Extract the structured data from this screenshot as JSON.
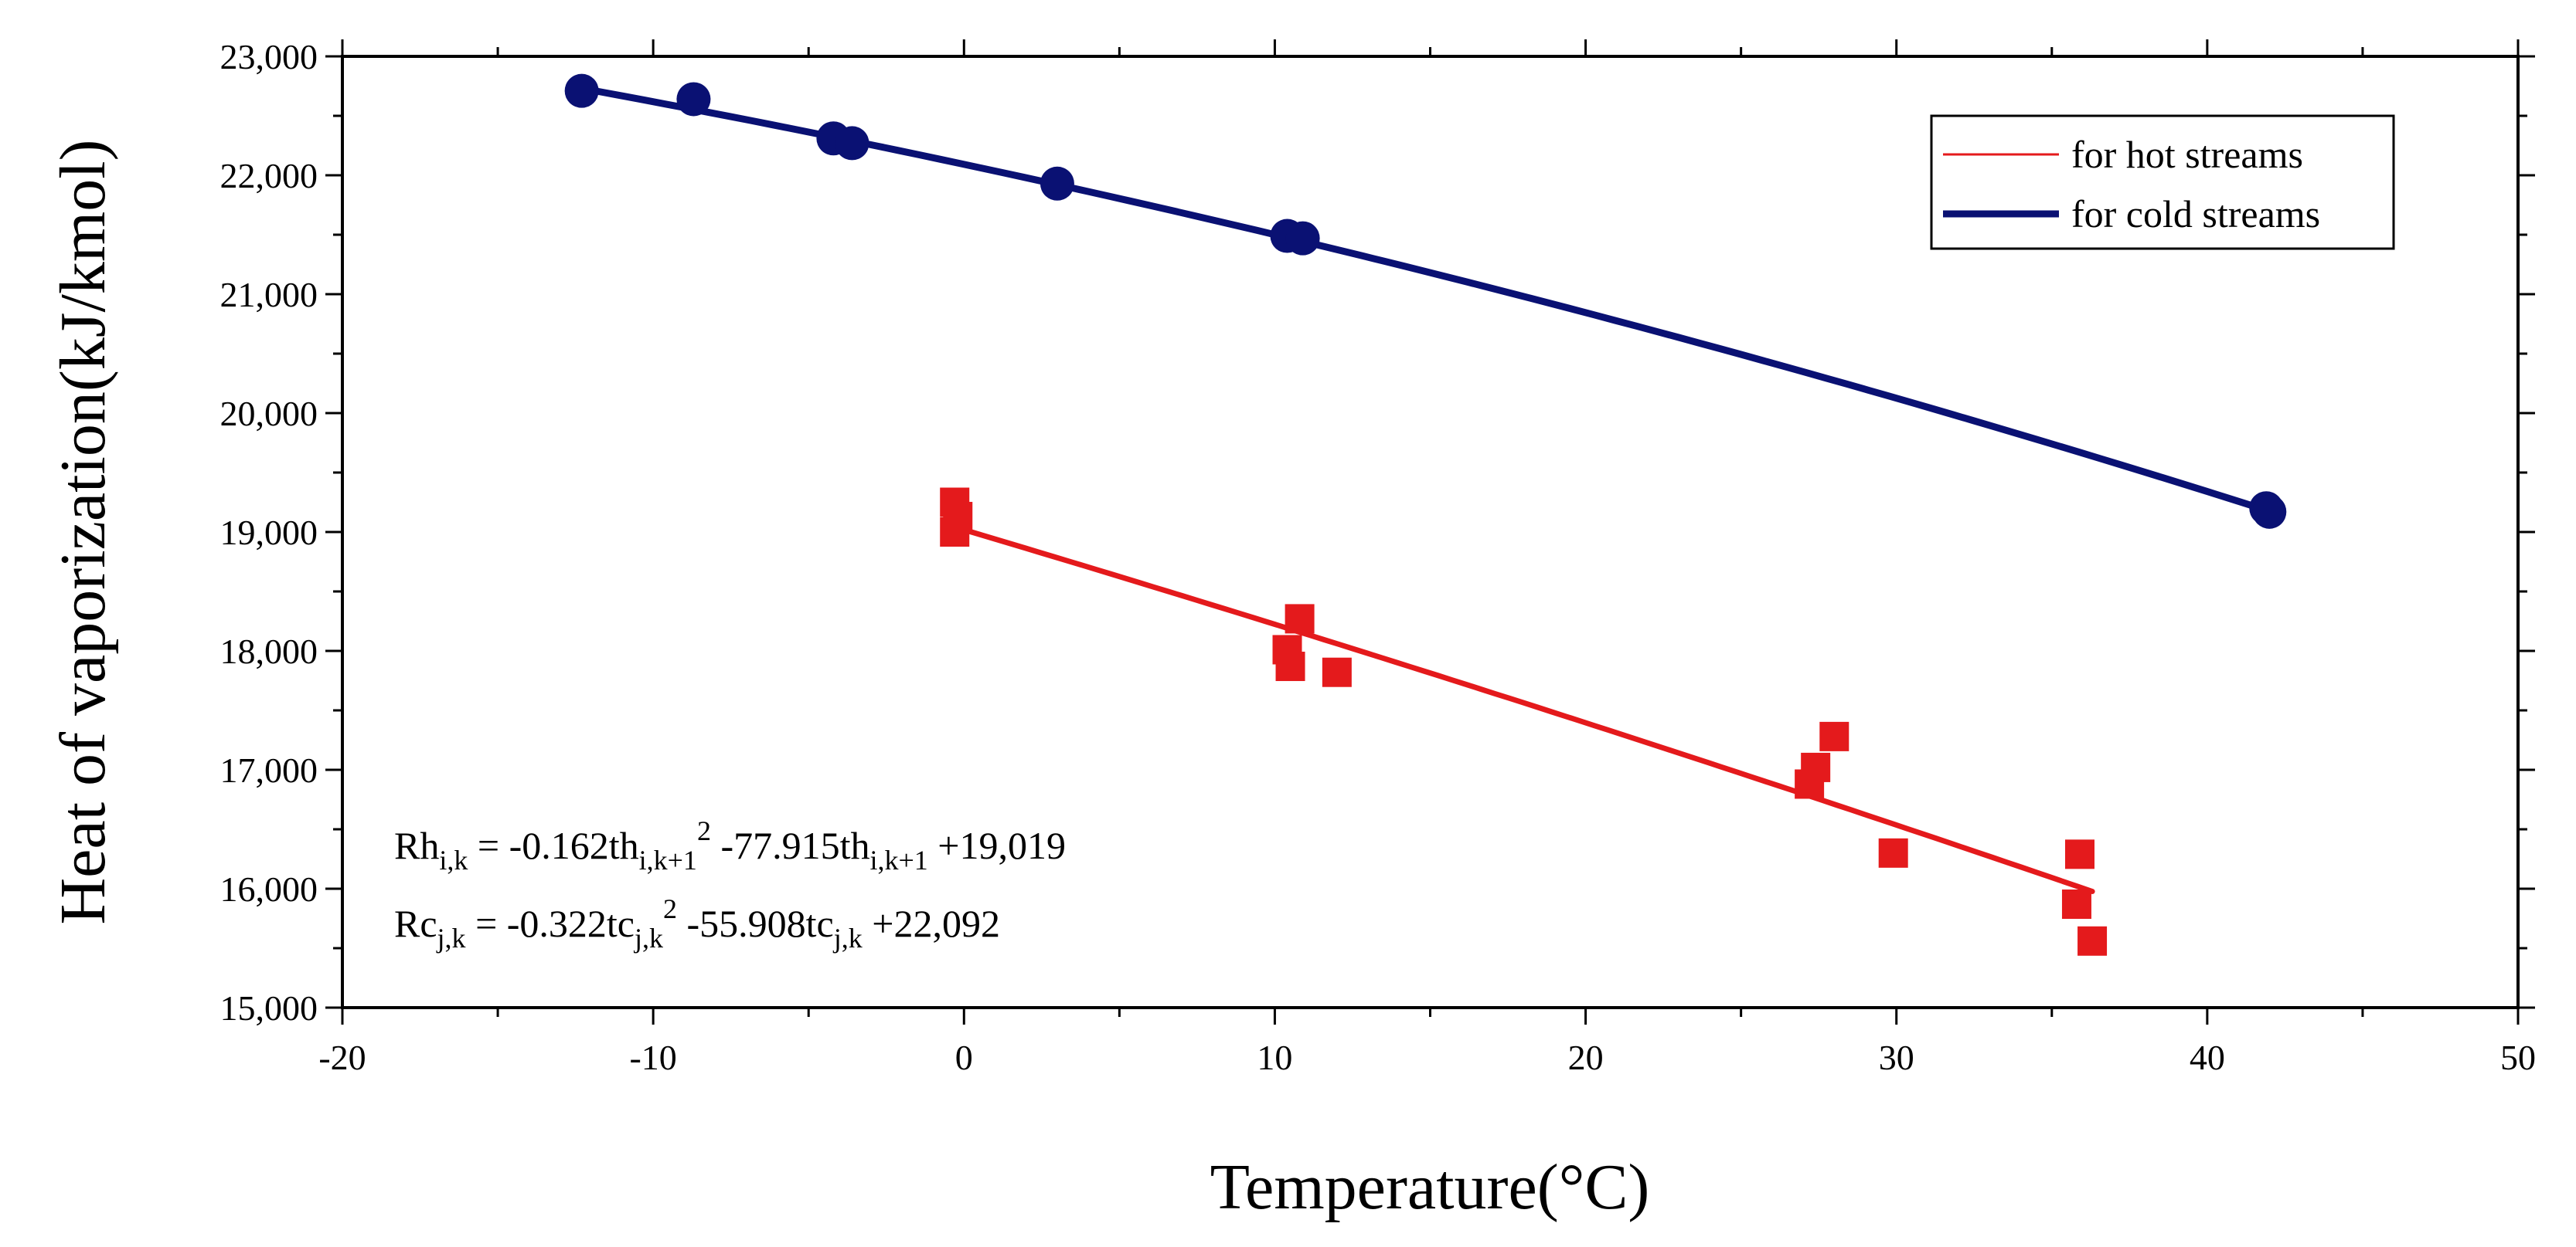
{
  "chart_data": {
    "type": "scatter",
    "title": "",
    "xlabel": "Temperature(°C)",
    "ylabel": "Heat of vaporization(kJ/kmol)",
    "xlim": [
      -20,
      50
    ],
    "ylim": [
      15000,
      23000
    ],
    "x_ticks": [
      -20,
      -10,
      0,
      10,
      20,
      30,
      40,
      50
    ],
    "y_ticks": [
      15000,
      16000,
      17000,
      18000,
      19000,
      20000,
      21000,
      22000,
      23000
    ],
    "x_tick_labels": [
      "-20",
      "-10",
      "0",
      "10",
      "20",
      "30",
      "40",
      "50"
    ],
    "y_tick_labels": [
      "15,000",
      "16,000",
      "17,000",
      "18,000",
      "19,000",
      "20,000",
      "21,000",
      "22,000",
      "23,000"
    ],
    "grid": false,
    "legend_position": "top-right",
    "series": [
      {
        "name": "for hot streams",
        "color": "#e41a1c",
        "marker": "square",
        "points": [
          {
            "x": -0.3,
            "y": 19250
          },
          {
            "x": -0.2,
            "y": 19130
          },
          {
            "x": -0.3,
            "y": 19000
          },
          {
            "x": 10.8,
            "y": 18270
          },
          {
            "x": 10.4,
            "y": 18010
          },
          {
            "x": 10.5,
            "y": 17870
          },
          {
            "x": 12.0,
            "y": 17820
          },
          {
            "x": 28.0,
            "y": 17280
          },
          {
            "x": 27.4,
            "y": 17020
          },
          {
            "x": 27.2,
            "y": 16880
          },
          {
            "x": 29.9,
            "y": 16300
          },
          {
            "x": 35.9,
            "y": 16290
          },
          {
            "x": 35.8,
            "y": 15870
          },
          {
            "x": 36.3,
            "y": 15560
          }
        ],
        "fit": {
          "type": "quadratic",
          "a": -0.162,
          "b": -77.915,
          "c": 19019,
          "x_range": [
            -0.3,
            36.3
          ]
        }
      },
      {
        "name": "for cold streams",
        "color": "#0a1173",
        "marker": "circle",
        "points": [
          {
            "x": -12.3,
            "y": 22710
          },
          {
            "x": -8.7,
            "y": 22640
          },
          {
            "x": -4.2,
            "y": 22310
          },
          {
            "x": -3.6,
            "y": 22270
          },
          {
            "x": 3.0,
            "y": 21930
          },
          {
            "x": 10.4,
            "y": 21490
          },
          {
            "x": 10.9,
            "y": 21470
          },
          {
            "x": 41.9,
            "y": 19200
          },
          {
            "x": 42.0,
            "y": 19170
          }
        ],
        "fit": {
          "type": "quadratic",
          "a": -0.322,
          "b": -55.908,
          "c": 22092,
          "x_range": [
            -12.3,
            42.0
          ]
        }
      }
    ],
    "annotations": [
      {
        "prefix": "Rh",
        "prefix_sub": "i,k",
        "eq": " = -0.162th",
        "sub1": "i,k+1",
        "sup1": "2",
        "mid": " -77.915th",
        "sub2": "i,k+1",
        "tail": " +19,019"
      },
      {
        "prefix": "Rc",
        "prefix_sub": "j,k",
        "eq": " = -0.322tc",
        "sub1": "j,k",
        "sup1": "2",
        "mid": " -55.908tc",
        "sub2": "j,k",
        "tail": " +22,092"
      }
    ]
  }
}
